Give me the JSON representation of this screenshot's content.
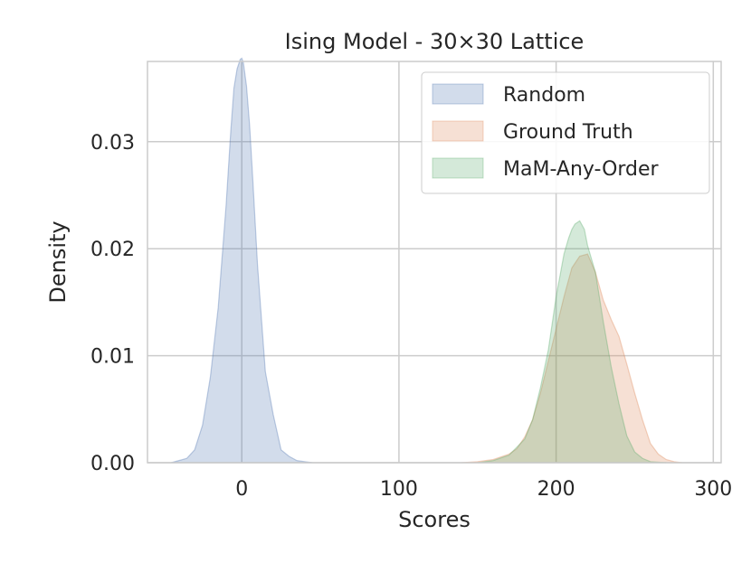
{
  "chart_data": {
    "type": "area",
    "title": "Ising Model - 30×30 Lattice",
    "xlabel": "Scores",
    "ylabel": "Density",
    "xlim": [
      -60,
      305
    ],
    "ylim": [
      0,
      0.0375
    ],
    "x_ticks": [
      0,
      100,
      200,
      300
    ],
    "x_tick_labels": [
      "0",
      "100",
      "200",
      "300"
    ],
    "y_ticks": [
      0.0,
      0.01,
      0.02,
      0.03
    ],
    "y_tick_labels": [
      "0.00",
      "0.01",
      "0.02",
      "0.03"
    ],
    "grid": true,
    "legend_position": "top-right",
    "series": [
      {
        "name": "Random",
        "color": "#4c72b0",
        "x": [
          -45,
          -40,
          -35,
          -30,
          -25,
          -20,
          -15,
          -10,
          -7,
          -5,
          -3,
          -1,
          0,
          1,
          3,
          5,
          7,
          10,
          15,
          20,
          25,
          30,
          35,
          40,
          45
        ],
        "y": [
          0,
          0.0002,
          0.0004,
          0.0012,
          0.0035,
          0.008,
          0.0145,
          0.024,
          0.031,
          0.035,
          0.0368,
          0.0377,
          0.0378,
          0.0374,
          0.0352,
          0.0315,
          0.0265,
          0.0185,
          0.0085,
          0.0045,
          0.0012,
          0.0006,
          0.0002,
          0.0001,
          0
        ]
      },
      {
        "name": "Ground Truth",
        "color": "#dd8452",
        "x": [
          140,
          150,
          160,
          170,
          175,
          180,
          185,
          190,
          195,
          200,
          205,
          210,
          215,
          220,
          225,
          230,
          235,
          240,
          245,
          250,
          255,
          260,
          265,
          270,
          275,
          280
        ],
        "y": [
          0,
          0.0001,
          0.0003,
          0.0008,
          0.0013,
          0.0024,
          0.004,
          0.0065,
          0.0095,
          0.0125,
          0.0155,
          0.0182,
          0.0193,
          0.0195,
          0.0178,
          0.0152,
          0.0134,
          0.0118,
          0.0092,
          0.0065,
          0.004,
          0.0018,
          0.0008,
          0.0003,
          0.0001,
          0
        ]
      },
      {
        "name": "MaM-Any-Order",
        "color": "#55a868",
        "x": [
          150,
          160,
          170,
          180,
          185,
          190,
          195,
          200,
          205,
          208,
          210,
          212,
          215,
          218,
          220,
          225,
          230,
          235,
          240,
          245,
          250,
          255,
          260,
          270
        ],
        "y": [
          0,
          0.0002,
          0.0007,
          0.0022,
          0.004,
          0.007,
          0.0105,
          0.0155,
          0.0195,
          0.021,
          0.0218,
          0.0223,
          0.0226,
          0.0218,
          0.0203,
          0.0178,
          0.0132,
          0.009,
          0.0055,
          0.0025,
          0.001,
          0.0004,
          0.0001,
          0
        ]
      }
    ]
  }
}
